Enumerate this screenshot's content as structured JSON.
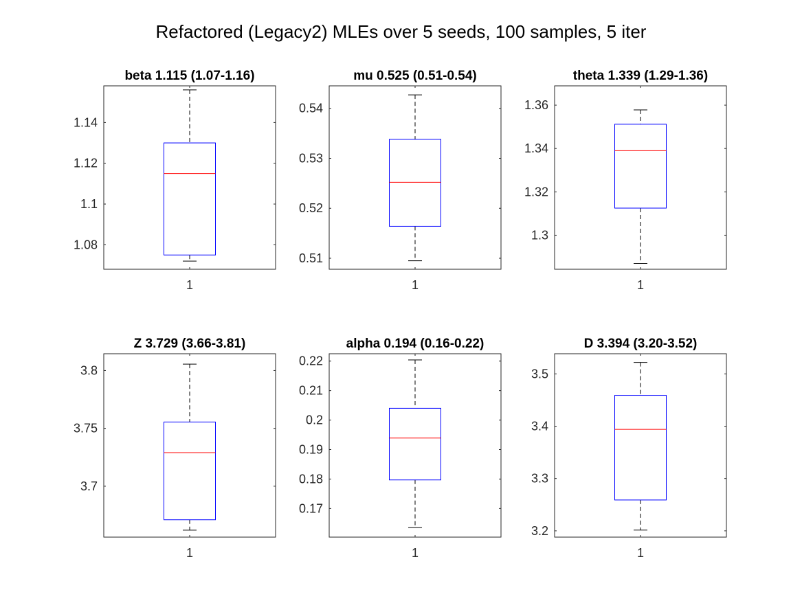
{
  "figure": {
    "title": "Refactored (Legacy2) MLEs over 5 seeds, 100 samples, 5 iter"
  },
  "colors": {
    "box": "#0000ff",
    "median": "#ff0000",
    "whisker": "#000000",
    "axes": "#262626",
    "background": "#ffffff"
  },
  "chart_data": [
    {
      "type": "box",
      "title": "beta 1.115 (1.07-1.16)",
      "categories": [
        "1"
      ],
      "ylim": [
        1.068,
        1.158
      ],
      "yticks": [
        1.08,
        1.1,
        1.12,
        1.14
      ],
      "yticklabels": [
        "1.08",
        "1.1",
        "1.12",
        "1.14"
      ],
      "box": {
        "min": 1.072,
        "q1": 1.075,
        "median": 1.115,
        "q3": 1.13,
        "max": 1.156
      }
    },
    {
      "type": "box",
      "title": "mu 0.525 (0.51-0.54)",
      "categories": [
        "1"
      ],
      "ylim": [
        0.5078,
        0.5445
      ],
      "yticks": [
        0.51,
        0.52,
        0.53,
        0.54
      ],
      "yticklabels": [
        "0.51",
        "0.52",
        "0.53",
        "0.54"
      ],
      "box": {
        "min": 0.5095,
        "q1": 0.5164,
        "median": 0.5252,
        "q3": 0.5338,
        "max": 0.5427
      }
    },
    {
      "type": "box",
      "title": "theta 1.339 (1.29-1.36)",
      "categories": [
        "1"
      ],
      "ylim": [
        1.2843,
        1.3689
      ],
      "yticks": [
        1.3,
        1.32,
        1.34,
        1.36
      ],
      "yticklabels": [
        "1.3",
        "1.32",
        "1.34",
        "1.36"
      ],
      "box": {
        "min": 1.287,
        "q1": 1.3125,
        "median": 1.339,
        "q3": 1.3512,
        "max": 1.3578
      }
    },
    {
      "type": "box",
      "title": "Z 3.729 (3.66-3.81)",
      "categories": [
        "1"
      ],
      "ylim": [
        3.656,
        3.8145
      ],
      "yticks": [
        3.7,
        3.75,
        3.8
      ],
      "yticklabels": [
        "3.7",
        "3.75",
        "3.8"
      ],
      "box": {
        "min": 3.662,
        "q1": 3.671,
        "median": 3.729,
        "q3": 3.7555,
        "max": 3.8055
      }
    },
    {
      "type": "box",
      "title": "alpha 0.194 (0.16-0.22)",
      "categories": [
        "1"
      ],
      "ylim": [
        0.1603,
        0.2225
      ],
      "yticks": [
        0.17,
        0.18,
        0.19,
        0.2,
        0.21,
        0.22
      ],
      "yticklabels": [
        "0.17",
        "0.18",
        "0.19",
        "0.2",
        "0.21",
        "0.22"
      ],
      "box": {
        "min": 0.1636,
        "q1": 0.1797,
        "median": 0.1939,
        "q3": 0.204,
        "max": 0.2204
      }
    },
    {
      "type": "box",
      "title": "D 3.394 (3.20-3.52)",
      "categories": [
        "1"
      ],
      "ylim": [
        3.188,
        3.5385
      ],
      "yticks": [
        3.2,
        3.3,
        3.4,
        3.5
      ],
      "yticklabels": [
        "3.2",
        "3.3",
        "3.4",
        "3.5"
      ],
      "box": {
        "min": 3.2015,
        "q1": 3.259,
        "median": 3.394,
        "q3": 3.459,
        "max": 3.522
      }
    }
  ]
}
